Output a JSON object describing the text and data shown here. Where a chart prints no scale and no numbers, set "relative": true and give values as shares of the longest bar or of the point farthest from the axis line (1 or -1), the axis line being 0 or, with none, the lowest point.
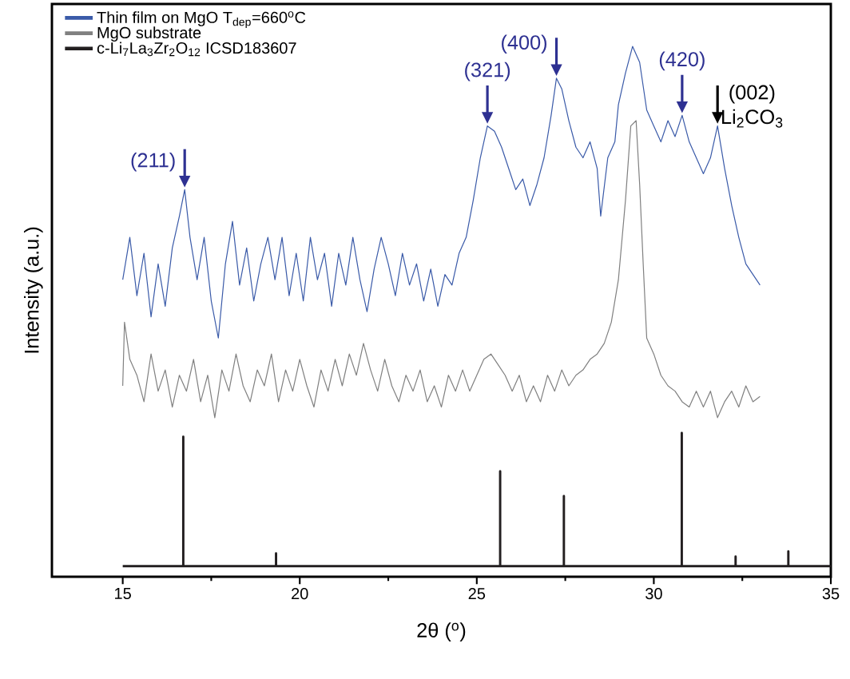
{
  "chart_data": {
    "type": "line",
    "relative": true,
    "xlabel": "2θ ($^{o}$)",
    "ylabel": "Intensity (a.u.)",
    "xlim": [
      13,
      35
    ],
    "xticks": [
      15,
      {
        "value": 17.5,
        "label": null
      },
      20,
      {
        "value": 22.5,
        "label": null
      },
      25,
      {
        "value": 27.5,
        "label": null
      },
      30,
      {
        "value": 32.5,
        "label": null
      },
      35
    ],
    "tick_labels": "x",
    "legend": "top left",
    "series": [
      {
        "name": "Thin film on MgO T$_{dep}$=660$^{o}$C",
        "color": "#3a5aa8",
        "x": [
          15.0,
          15.2,
          15.4,
          15.6,
          15.8,
          16.0,
          16.2,
          16.4,
          16.6,
          16.75,
          16.9,
          17.1,
          17.3,
          17.5,
          17.7,
          17.9,
          18.1,
          18.3,
          18.5,
          18.7,
          18.9,
          19.1,
          19.3,
          19.5,
          19.7,
          19.9,
          20.1,
          20.3,
          20.5,
          20.7,
          20.9,
          21.1,
          21.3,
          21.5,
          21.7,
          21.9,
          22.1,
          22.3,
          22.5,
          22.7,
          22.9,
          23.1,
          23.3,
          23.5,
          23.7,
          23.9,
          24.1,
          24.3,
          24.5,
          24.7,
          24.9,
          25.1,
          25.3,
          25.5,
          25.7,
          25.9,
          26.1,
          26.3,
          26.5,
          26.7,
          26.9,
          27.1,
          27.25,
          27.4,
          27.6,
          27.8,
          28.0,
          28.2,
          28.4,
          28.5,
          28.7,
          28.9,
          29.0,
          29.2,
          29.4,
          29.6,
          29.8,
          30.0,
          30.2,
          30.4,
          30.6,
          30.8,
          31.0,
          31.2,
          31.4,
          31.6,
          31.8,
          32.0,
          32.2,
          32.4,
          32.6,
          32.8,
          33.0
        ],
        "values": [
          0.56,
          0.64,
          0.53,
          0.61,
          0.49,
          0.59,
          0.51,
          0.62,
          0.68,
          0.73,
          0.64,
          0.56,
          0.64,
          0.52,
          0.45,
          0.59,
          0.67,
          0.55,
          0.62,
          0.52,
          0.59,
          0.64,
          0.56,
          0.64,
          0.53,
          0.61,
          0.52,
          0.64,
          0.56,
          0.61,
          0.51,
          0.61,
          0.55,
          0.64,
          0.56,
          0.5,
          0.58,
          0.64,
          0.59,
          0.53,
          0.61,
          0.55,
          0.59,
          0.52,
          0.58,
          0.51,
          0.57,
          0.55,
          0.61,
          0.64,
          0.71,
          0.79,
          0.85,
          0.84,
          0.81,
          0.77,
          0.73,
          0.75,
          0.7,
          0.74,
          0.79,
          0.87,
          0.94,
          0.92,
          0.86,
          0.81,
          0.79,
          0.82,
          0.77,
          0.68,
          0.79,
          0.82,
          0.89,
          0.95,
          1.0,
          0.97,
          0.88,
          0.85,
          0.82,
          0.86,
          0.83,
          0.87,
          0.82,
          0.79,
          0.76,
          0.79,
          0.85,
          0.77,
          0.7,
          0.64,
          0.59,
          0.57,
          0.55
        ]
      },
      {
        "name": "MgO substrate",
        "color": "#808080",
        "x": [
          15.0,
          15.05,
          15.2,
          15.4,
          15.6,
          15.8,
          16.0,
          16.2,
          16.4,
          16.6,
          16.8,
          17.0,
          17.2,
          17.4,
          17.6,
          17.8,
          18.0,
          18.2,
          18.4,
          18.6,
          18.8,
          19.0,
          19.2,
          19.4,
          19.6,
          19.8,
          20.0,
          20.2,
          20.4,
          20.6,
          20.8,
          21.0,
          21.2,
          21.4,
          21.6,
          21.8,
          22.0,
          22.2,
          22.4,
          22.6,
          22.8,
          23.0,
          23.2,
          23.4,
          23.6,
          23.8,
          24.0,
          24.2,
          24.4,
          24.6,
          24.8,
          25.0,
          25.2,
          25.4,
          25.6,
          25.8,
          26.0,
          26.2,
          26.4,
          26.6,
          26.8,
          27.0,
          27.2,
          27.4,
          27.6,
          27.8,
          28.0,
          28.2,
          28.4,
          28.6,
          28.8,
          29.0,
          29.2,
          29.35,
          29.5,
          29.6,
          29.7,
          29.8,
          30.0,
          30.2,
          30.4,
          30.6,
          30.8,
          31.0,
          31.2,
          31.4,
          31.6,
          31.8,
          32.0,
          32.2,
          32.4,
          32.6,
          32.8,
          33.0
        ],
        "values": [
          0.36,
          0.48,
          0.41,
          0.38,
          0.33,
          0.42,
          0.35,
          0.39,
          0.32,
          0.38,
          0.35,
          0.41,
          0.33,
          0.38,
          0.3,
          0.39,
          0.35,
          0.42,
          0.36,
          0.33,
          0.39,
          0.36,
          0.42,
          0.33,
          0.39,
          0.35,
          0.41,
          0.36,
          0.32,
          0.39,
          0.35,
          0.41,
          0.36,
          0.42,
          0.38,
          0.44,
          0.39,
          0.35,
          0.41,
          0.36,
          0.33,
          0.38,
          0.35,
          0.39,
          0.33,
          0.36,
          0.32,
          0.38,
          0.35,
          0.39,
          0.35,
          0.38,
          0.41,
          0.42,
          0.4,
          0.38,
          0.35,
          0.38,
          0.33,
          0.36,
          0.33,
          0.38,
          0.35,
          0.39,
          0.36,
          0.38,
          0.39,
          0.41,
          0.42,
          0.44,
          0.48,
          0.56,
          0.71,
          0.85,
          0.86,
          0.74,
          0.59,
          0.45,
          0.42,
          0.38,
          0.36,
          0.35,
          0.33,
          0.32,
          0.35,
          0.32,
          0.35,
          0.3,
          0.33,
          0.35,
          0.32,
          0.36,
          0.33,
          0.34
        ]
      },
      {
        "name": "c-Li$_{7}$La$_{3}$Zr$_{2}$O$_{12}$ ICSD183607",
        "color": "#231f20",
        "x": [
          15,
          16.71,
          16.71,
          16.71,
          19.33,
          19.33,
          19.33,
          25.66,
          25.66,
          25.66,
          27.46,
          27.46,
          27.46,
          30.79,
          30.79,
          30.79,
          32.31,
          32.31,
          32.31,
          33.8,
          33.8,
          33.8,
          35
        ],
        "values": [
          0.02,
          0.02,
          0.264,
          0.02,
          0.02,
          0.044,
          0.02,
          0.02,
          0.199,
          0.02,
          0.02,
          0.152,
          0.02,
          0.02,
          0.271,
          0.02,
          0.02,
          0.038,
          0.02,
          0.02,
          0.048,
          0.02,
          0.02
        ]
      }
    ],
    "annotations": [
      {
        "text": "(211)",
        "x": 16.75,
        "y": 0.73
      },
      {
        "text": "(321)",
        "x": 25.3,
        "y": 0.85
      },
      {
        "text": "(400)",
        "x": 27.25,
        "y": 0.94
      },
      {
        "text": "(420)",
        "x": 30.8,
        "y": 0.87
      },
      {
        "text": "(002)",
        "x": 31.8,
        "y": 0.85
      },
      "Li$_{2}$CO$_{3}$"
    ]
  }
}
